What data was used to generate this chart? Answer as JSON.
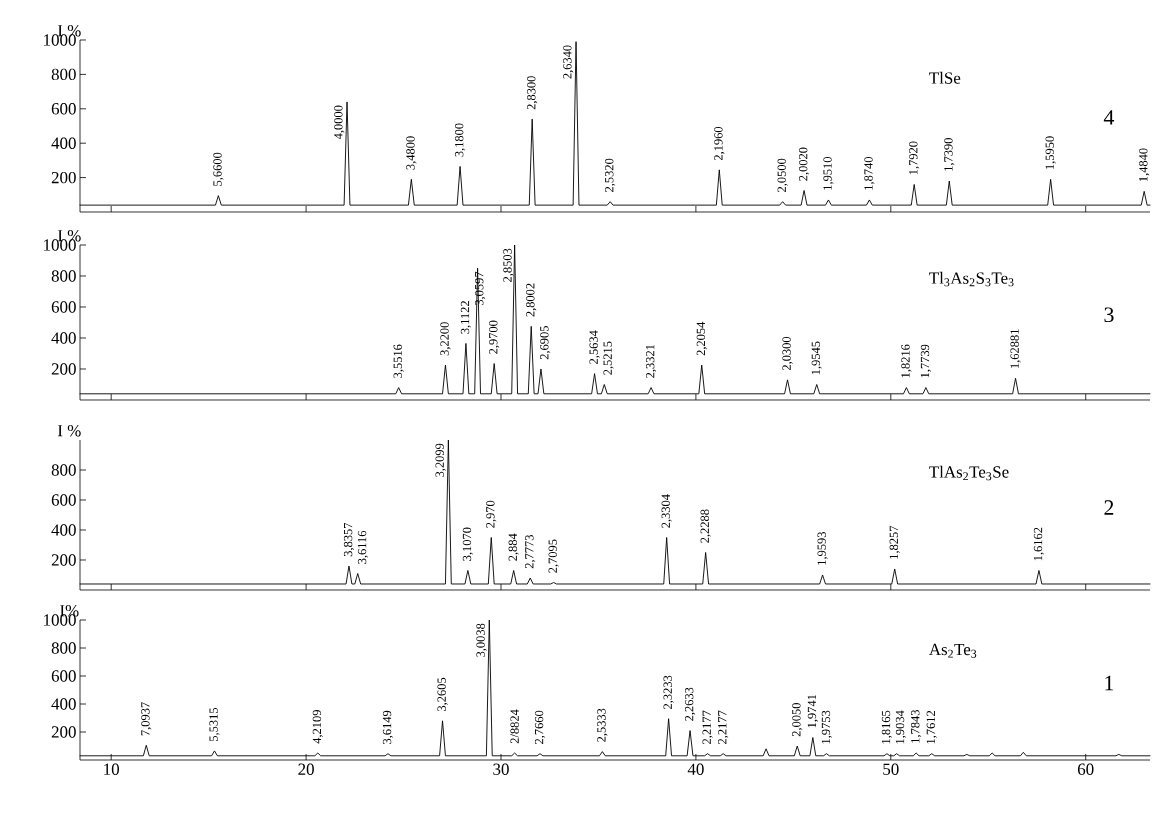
{
  "chart_data": [
    {
      "type": "line",
      "ylabel": "I %",
      "xlim": [
        8.4,
        63.3
      ],
      "ylim": [
        0,
        1000
      ],
      "xticks": [
        10,
        20,
        30,
        40,
        50,
        60
      ],
      "yticks": [
        200,
        400,
        600,
        800,
        1000
      ],
      "tick_labels": "y",
      "x": [
        8.4,
        15.35,
        15.5,
        15.65,
        21.95,
        22.1,
        22.25,
        25.25,
        25.4,
        25.55,
        27.75,
        27.9,
        28.05,
        31.45,
        31.6,
        31.75,
        33.7,
        33.85,
        34.0,
        35.45,
        35.6,
        35.75,
        41.05,
        41.2,
        41.35,
        44.3,
        44.45,
        44.6,
        45.4,
        45.55,
        45.7,
        46.65,
        46.8,
        46.95,
        48.75,
        48.9,
        49.05,
        51.05,
        51.2,
        51.35,
        52.85,
        53.0,
        53.15,
        58.05,
        58.2,
        58.35,
        62.85,
        63.0,
        63.15,
        63.3
      ],
      "series": [
        {
          "color": "#000000",
          "values": [
            40,
            40,
            95,
            40,
            40,
            640,
            40,
            40,
            190,
            40,
            40,
            265,
            40,
            40,
            540,
            40,
            40,
            990,
            40,
            40,
            60,
            40,
            40,
            245,
            40,
            40,
            60,
            40,
            40,
            125,
            40,
            40,
            70,
            40,
            40,
            70,
            40,
            40,
            160,
            40,
            40,
            180,
            40,
            40,
            190,
            40,
            40,
            120,
            40,
            40
          ]
        }
      ],
      "annotations": [
        "TlSe",
        "4",
        {
          "text": "5,6600",
          "x": 15.5,
          "y": 95
        },
        {
          "text": "4,0000",
          "x": 22.1,
          "y": 640
        },
        {
          "text": "3,4800",
          "x": 25.4,
          "y": 190
        },
        {
          "text": "3,1800",
          "x": 27.9,
          "y": 265
        },
        {
          "text": "2,8300",
          "x": 31.6,
          "y": 540
        },
        {
          "text": "2,6340",
          "x": 33.85,
          "y": 990
        },
        {
          "text": "2,5320",
          "x": 35.6,
          "y": 60
        },
        {
          "text": "2,1960",
          "x": 41.2,
          "y": 245
        },
        {
          "text": "2,0500",
          "x": 44.45,
          "y": 60
        },
        {
          "text": "2,0020",
          "x": 45.55,
          "y": 125
        },
        {
          "text": "1,9510",
          "x": 46.8,
          "y": 70
        },
        {
          "text": "1,8740",
          "x": 48.9,
          "y": 70
        },
        {
          "text": "1,7920",
          "x": 51.2,
          "y": 160
        },
        {
          "text": "1,7390",
          "x": 53.0,
          "y": 180
        },
        {
          "text": "1,5950",
          "x": 58.2,
          "y": 190
        },
        {
          "text": "1,4840",
          "x": 63.0,
          "y": 120
        }
      ]
    },
    {
      "type": "line",
      "ylabel": "I %",
      "xlim": [
        8.4,
        63.3
      ],
      "ylim": [
        0,
        1000
      ],
      "xticks": [
        10,
        20,
        30,
        40,
        50,
        60
      ],
      "yticks": [
        200,
        400,
        600,
        800,
        1000
      ],
      "tick_labels": "y",
      "x": [
        8.4,
        24.6,
        24.75,
        24.9,
        27.0,
        27.15,
        27.3,
        28.05,
        28.2,
        28.35,
        28.65,
        28.8,
        28.95,
        29.5,
        29.65,
        29.8,
        30.55,
        30.7,
        30.85,
        31.4,
        31.55,
        31.7,
        31.9,
        32.05,
        32.2,
        34.65,
        34.8,
        34.95,
        35.15,
        35.3,
        35.45,
        37.55,
        37.7,
        37.85,
        40.15,
        40.3,
        40.45,
        44.55,
        44.7,
        44.85,
        46.05,
        46.2,
        46.35,
        50.65,
        50.8,
        50.95,
        51.65,
        51.8,
        51.95,
        56.25,
        56.4,
        56.55,
        63.3
      ],
      "series": [
        {
          "color": "#000000",
          "values": [
            40,
            40,
            80,
            40,
            40,
            225,
            40,
            40,
            365,
            40,
            40,
            850,
            40,
            40,
            235,
            40,
            40,
            1000,
            40,
            40,
            475,
            40,
            40,
            200,
            40,
            40,
            170,
            40,
            40,
            100,
            40,
            40,
            80,
            40,
            40,
            225,
            40,
            40,
            130,
            40,
            40,
            100,
            40,
            40,
            80,
            40,
            40,
            80,
            40,
            40,
            140,
            40,
            40
          ]
        }
      ],
      "annotations": [
        "Tl$_{3}$As$_{2}$S$_{3}$Te$_{3}$",
        "3",
        {
          "text": "3,5516",
          "x": 24.75,
          "y": 80
        },
        {
          "text": "3,2200",
          "x": 27.15,
          "y": 225
        },
        {
          "text": "3,1122",
          "x": 28.2,
          "y": 365
        },
        {
          "text": "3,0597",
          "x": 28.8,
          "y": 850
        },
        {
          "text": "2,9700",
          "x": 29.65,
          "y": 235
        },
        {
          "text": "2,8503",
          "x": 30.7,
          "y": 1000
        },
        {
          "text": "2,8002",
          "x": 31.55,
          "y": 475
        },
        {
          "text": "2,6905",
          "x": 32.05,
          "y": 200
        },
        {
          "text": "2,5634",
          "x": 34.8,
          "y": 170
        },
        {
          "text": "2,5215",
          "x": 35.3,
          "y": 100
        },
        {
          "text": "2,3321",
          "x": 37.7,
          "y": 80
        },
        {
          "text": "2,2054",
          "x": 40.3,
          "y": 225
        },
        {
          "text": "2,0300",
          "x": 44.7,
          "y": 130
        },
        {
          "text": "1,9545",
          "x": 46.2,
          "y": 100
        },
        {
          "text": "1,8216",
          "x": 50.8,
          "y": 80
        },
        {
          "text": "1,7739",
          "x": 51.8,
          "y": 80
        },
        {
          "text": "1,62881",
          "x": 56.4,
          "y": 140
        }
      ]
    },
    {
      "type": "line",
      "ylabel": "I %",
      "xlim": [
        8.4,
        63.3
      ],
      "ylim": [
        0,
        1000
      ],
      "xticks": [
        10,
        20,
        30,
        40,
        50,
        60
      ],
      "yticks": [
        200,
        400,
        600,
        800
      ],
      "tick_labels": "y",
      "x": [
        8.4,
        22.05,
        22.2,
        22.35,
        22.5,
        22.65,
        22.8,
        27.15,
        27.3,
        27.45,
        28.15,
        28.3,
        28.45,
        29.35,
        29.5,
        29.65,
        30.5,
        30.65,
        30.8,
        31.35,
        31.5,
        31.65,
        32.55,
        32.7,
        32.85,
        38.35,
        38.5,
        38.65,
        40.35,
        40.5,
        40.65,
        46.35,
        46.5,
        46.65,
        50.05,
        50.2,
        50.35,
        57.45,
        57.6,
        57.75,
        63.3
      ],
      "series": [
        {
          "color": "#000000",
          "values": [
            40,
            40,
            160,
            40,
            40,
            110,
            40,
            40,
            1000,
            40,
            40,
            130,
            40,
            40,
            350,
            40,
            40,
            130,
            40,
            40,
            80,
            40,
            40,
            50,
            40,
            40,
            350,
            40,
            40,
            250,
            40,
            40,
            100,
            40,
            40,
            140,
            40,
            40,
            130,
            40,
            40
          ]
        }
      ],
      "annotations": [
        "TlAs$_{2}$Te$_{3}$Se",
        "2",
        {
          "text": "3,8357",
          "x": 22.2,
          "y": 160
        },
        {
          "text": "3,6116",
          "x": 22.65,
          "y": 110
        },
        {
          "text": "3,2099",
          "x": 27.3,
          "y": 1000
        },
        {
          "text": "3,1070",
          "x": 28.3,
          "y": 130
        },
        {
          "text": "2,970",
          "x": 29.5,
          "y": 350
        },
        {
          "text": "2,884",
          "x": 30.65,
          "y": 130
        },
        {
          "text": "2,7773",
          "x": 31.5,
          "y": 80
        },
        {
          "text": "2,7095",
          "x": 32.7,
          "y": 50
        },
        {
          "text": "2,3304",
          "x": 38.5,
          "y": 350
        },
        {
          "text": "2,2288",
          "x": 40.5,
          "y": 250
        },
        {
          "text": "1,9593",
          "x": 46.5,
          "y": 100
        },
        {
          "text": "1,8257",
          "x": 50.2,
          "y": 140
        },
        {
          "text": "1,6162",
          "x": 57.6,
          "y": 130
        }
      ]
    },
    {
      "type": "line",
      "ylabel": "I%",
      "xlim": [
        8.4,
        63.3
      ],
      "ylim": [
        0,
        1000
      ],
      "xticks": [
        10,
        20,
        30,
        40,
        50,
        60
      ],
      "yticks": [
        200,
        400,
        600,
        800,
        1000
      ],
      "x": [
        8.4,
        11.65,
        11.8,
        11.95,
        15.15,
        15.3,
        15.45,
        20.45,
        20.6,
        20.75,
        24.05,
        24.2,
        24.35,
        26.85,
        27.0,
        27.15,
        29.25,
        29.4,
        29.55,
        30.55,
        30.7,
        30.85,
        31.85,
        32.0,
        32.15,
        35.05,
        35.2,
        35.35,
        38.45,
        38.6,
        38.75,
        39.55,
        39.7,
        39.85,
        40.45,
        40.6,
        40.75,
        41.25,
        41.4,
        41.55,
        43.45,
        43.6,
        43.75,
        45.05,
        45.2,
        45.35,
        45.85,
        46.0,
        46.15,
        46.55,
        46.7,
        46.85,
        49.65,
        49.8,
        49.95,
        50.15,
        50.3,
        50.45,
        51.15,
        51.3,
        51.45,
        51.95,
        52.1,
        52.25,
        53.75,
        53.9,
        54.05,
        55.05,
        55.2,
        55.35,
        56.65,
        56.8,
        56.95,
        61.55,
        61.7,
        61.85,
        63.3
      ],
      "series": [
        {
          "color": "#000000",
          "values": [
            30,
            30,
            105,
            30,
            30,
            65,
            30,
            30,
            50,
            30,
            30,
            45,
            30,
            30,
            280,
            30,
            30,
            1000,
            30,
            30,
            50,
            30,
            30,
            45,
            30,
            30,
            60,
            30,
            30,
            295,
            30,
            30,
            210,
            30,
            30,
            45,
            30,
            30,
            45,
            30,
            30,
            80,
            30,
            30,
            100,
            30,
            30,
            160,
            30,
            30,
            45,
            30,
            30,
            45,
            30,
            30,
            45,
            30,
            30,
            50,
            30,
            30,
            45,
            30,
            30,
            40,
            30,
            30,
            50,
            30,
            30,
            55,
            30,
            30,
            40,
            30,
            30
          ]
        }
      ],
      "annotations": [
        "As$_{2}$Te$_{3}$",
        "1",
        {
          "text": "7,0937",
          "x": 11.8,
          "y": 105
        },
        {
          "text": "5,5315",
          "x": 15.3,
          "y": 65
        },
        {
          "text": "4,2109",
          "x": 20.6,
          "y": 50
        },
        {
          "text": "3,6149",
          "x": 24.2,
          "y": 45
        },
        {
          "text": "3,2605",
          "x": 27.0,
          "y": 280
        },
        {
          "text": "3,0038",
          "x": 29.4,
          "y": 1000
        },
        {
          "text": "2/8824",
          "x": 30.7,
          "y": 50
        },
        {
          "text": "2,7660",
          "x": 32.0,
          "y": 45
        },
        {
          "text": "2,5333",
          "x": 35.2,
          "y": 60
        },
        {
          "text": "2,3233",
          "x": 38.6,
          "y": 295
        },
        {
          "text": "2,2633",
          "x": 39.7,
          "y": 210
        },
        {
          "text": "2,2177",
          "x": 40.6,
          "y": 45
        },
        {
          "text": "2,2177",
          "x": 41.4,
          "y": 45
        },
        {
          "text": "2,0050",
          "x": 45.2,
          "y": 100
        },
        {
          "text": "1,9741",
          "x": 46.0,
          "y": 160
        },
        {
          "text": "1,9753",
          "x": 46.7,
          "y": 45
        },
        {
          "text": "1,8165",
          "x": 49.8,
          "y": 45
        },
        {
          "text": "1,9034",
          "x": 50.3,
          "y": 45
        },
        {
          "text": "1,7843",
          "x": 51.3,
          "y": 50
        },
        {
          "text": "1,7612",
          "x": 52.1,
          "y": 45
        }
      ]
    }
  ]
}
